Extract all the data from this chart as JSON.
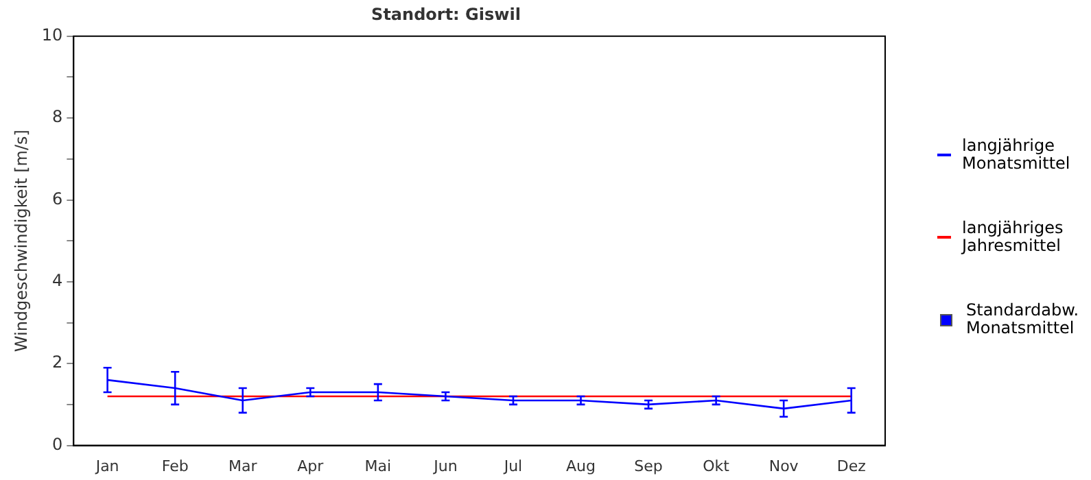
{
  "chart_data": {
    "type": "line",
    "title": "Standort: Giswil",
    "ylabel": "Windgeschwindigkeit [m/s]",
    "categories": [
      "Jan",
      "Feb",
      "Mar",
      "Apr",
      "Mai",
      "Jun",
      "Jul",
      "Aug",
      "Sep",
      "Okt",
      "Nov",
      "Dez"
    ],
    "series": [
      {
        "name": "langjährige Monatsmittel",
        "color": "#0000ff",
        "values": [
          1.6,
          1.4,
          1.1,
          1.3,
          1.3,
          1.2,
          1.1,
          1.1,
          1.0,
          1.1,
          0.9,
          1.1
        ],
        "errors": [
          0.3,
          0.4,
          0.3,
          0.1,
          0.2,
          0.1,
          0.1,
          0.1,
          0.1,
          0.1,
          0.2,
          0.3
        ]
      },
      {
        "name": "langjähriges Jahresmittel",
        "color": "#ff0000",
        "values": [
          1.2,
          1.2,
          1.2,
          1.2,
          1.2,
          1.2,
          1.2,
          1.2,
          1.2,
          1.2,
          1.2,
          1.2
        ]
      }
    ],
    "annotations": [
      "Standardabw. Monatsmittel"
    ],
    "ylim": [
      0,
      10
    ],
    "yticks": [
      0,
      {
        "value": 1,
        "label": null
      },
      2,
      {
        "value": 3,
        "label": null
      },
      4,
      {
        "value": 5,
        "label": null
      },
      6,
      {
        "value": 7,
        "label": null
      },
      8,
      {
        "value": 9,
        "label": null
      },
      10
    ],
    "grid": false,
    "legend": "right",
    "line_style": "solid"
  }
}
